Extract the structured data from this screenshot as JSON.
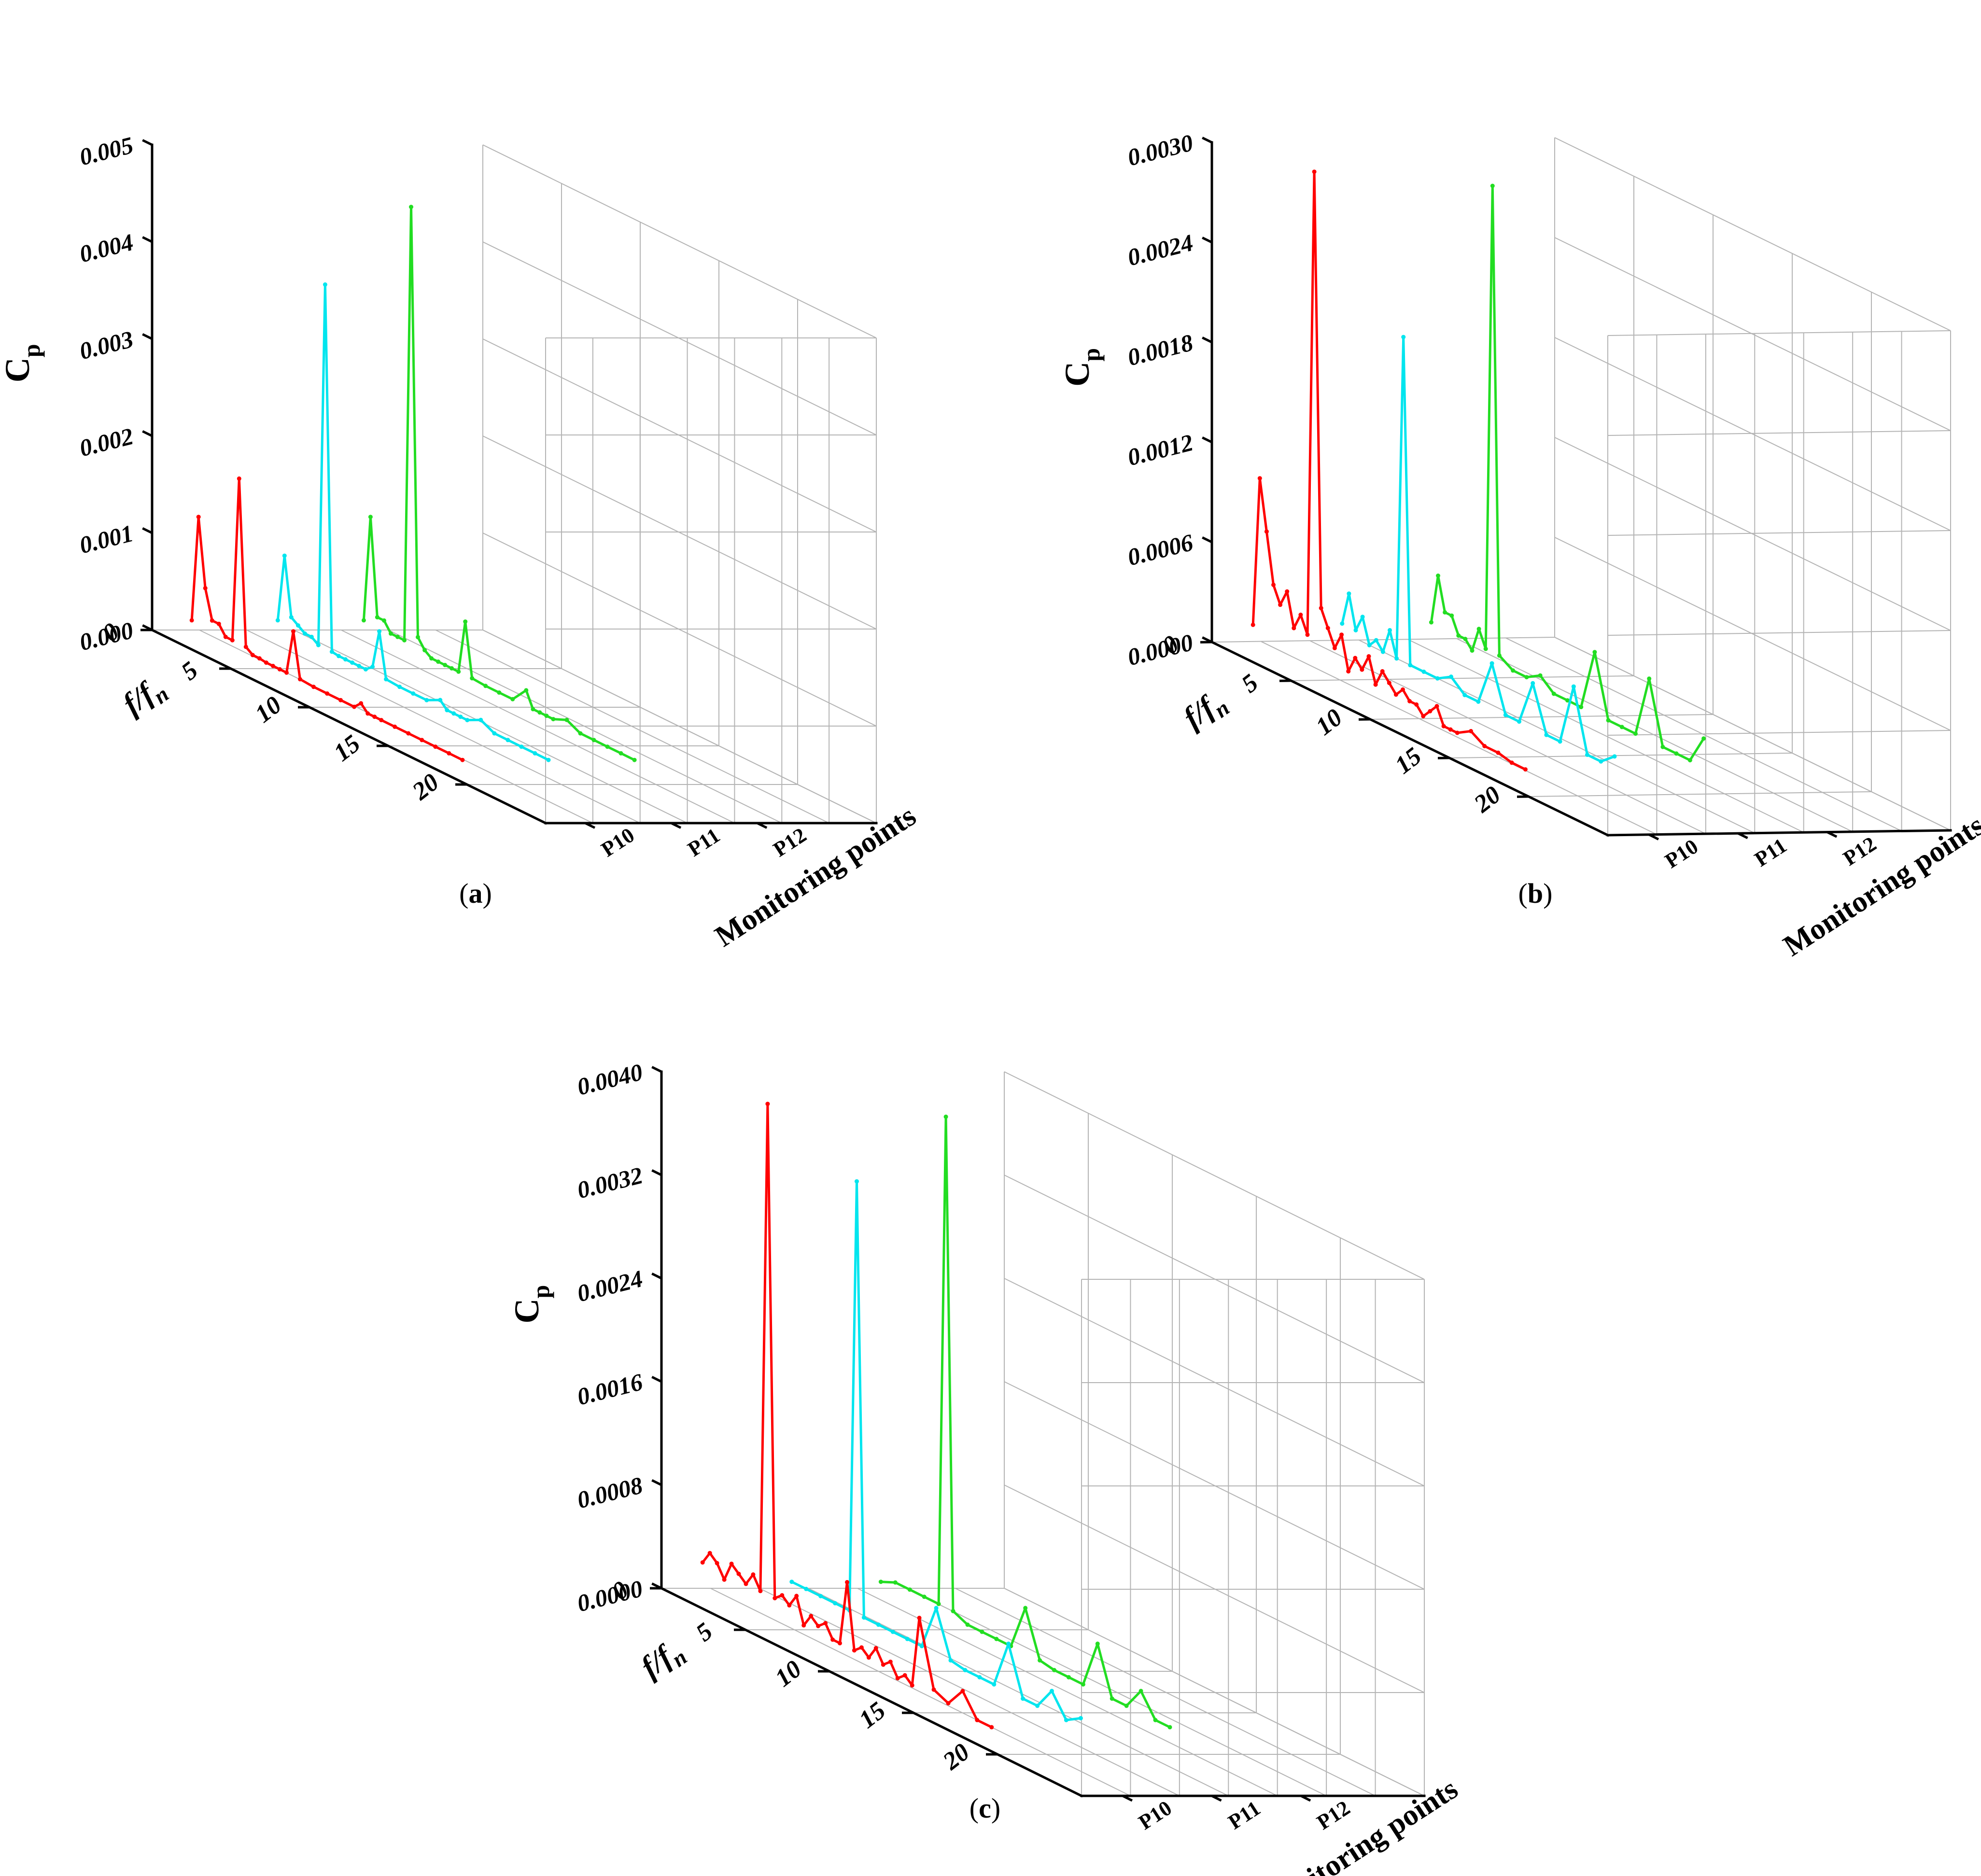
{
  "chart_data": [
    {
      "panel": "(a)",
      "caption_letter": "a",
      "type": "line",
      "view": "3d-waterfall",
      "ylabel_main": "C",
      "ylabel_sub": "p",
      "xlabel_main": "f/f",
      "xlabel_sub": "n",
      "zlabel": "Monitoring points",
      "x_ticks": [
        "0",
        "5",
        "10",
        "15",
        "20"
      ],
      "xlim": [
        0,
        25
      ],
      "y_ticks": [
        "0.000",
        "0.001",
        "0.002",
        "0.003",
        "0.004",
        "0.005"
      ],
      "ylim": [
        0,
        0.005
      ],
      "categories": [
        "P10",
        "P11",
        "P12"
      ],
      "grid": true,
      "series": [
        {
          "name": "P10",
          "color": "#ff0000",
          "x": [
            0,
            0.5,
            1,
            1.5,
            2,
            2.5,
            3,
            3.5,
            4,
            4.5,
            5,
            5.5,
            6,
            6.5,
            7,
            7.5,
            8,
            9,
            10,
            11,
            12,
            12.5,
            13,
            13.5,
            14,
            15,
            16,
            17,
            18,
            19,
            20
          ],
          "y": [
            0.0001,
            0.0012,
            0.0005,
            0.0002,
            0.0002,
            0.0001,
            0.0001,
            0.0018,
            0.0001,
            5e-05,
            5e-05,
            4e-05,
            4e-05,
            4e-05,
            4e-05,
            0.0005,
            4e-05,
            3e-05,
            3e-05,
            3e-05,
            3e-05,
            0.0001,
            3e-05,
            3e-05,
            3e-05,
            3e-05,
            3e-05,
            3e-05,
            3e-05,
            3e-05,
            3e-05
          ]
        },
        {
          "name": "P11",
          "color": "#00e5ee",
          "x": [
            0,
            0.5,
            1,
            1.5,
            2,
            2.5,
            3,
            3.5,
            4,
            4.5,
            5,
            5.5,
            6,
            6.5,
            7,
            7.5,
            8,
            9,
            10,
            11,
            12,
            12.5,
            13,
            13.5,
            14,
            15,
            16,
            17,
            18,
            19,
            20
          ],
          "y": [
            0.0001,
            0.0008,
            0.0002,
            0.00015,
            0.0001,
            0.0001,
            5e-05,
            0.0038,
            5e-05,
            4e-05,
            4e-05,
            4e-05,
            4e-05,
            4e-05,
            0.0001,
            0.0005,
            4e-05,
            3e-05,
            3e-05,
            3e-05,
            0.0001,
            3e-05,
            3e-05,
            3e-05,
            3e-05,
            0.0001,
            3e-05,
            3e-05,
            3e-05,
            3e-05,
            3e-05
          ]
        },
        {
          "name": "P12",
          "color": "#22dd22",
          "x": [
            0,
            0.5,
            1,
            1.5,
            2,
            2.5,
            3,
            3.5,
            4,
            4.5,
            5,
            5.5,
            6,
            6.5,
            7,
            7.5,
            8,
            9,
            10,
            11,
            12,
            12.5,
            13,
            13.5,
            14,
            15,
            16,
            17,
            18,
            19,
            20
          ],
          "y": [
            0.0001,
            0.0012,
            0.0002,
            0.0002,
            0.0001,
            0.0001,
            0.0001,
            0.0046,
            0.0002,
            0.0001,
            5e-05,
            5e-05,
            5e-05,
            5e-05,
            5e-05,
            0.0006,
            5e-05,
            4e-05,
            4e-05,
            4e-05,
            0.0002,
            4e-05,
            4e-05,
            4e-05,
            4e-05,
            0.0001,
            3e-05,
            3e-05,
            3e-05,
            3e-05,
            3e-05
          ]
        }
      ]
    },
    {
      "panel": "(b)",
      "caption_letter": "b",
      "type": "line",
      "view": "3d-waterfall",
      "ylabel_main": "C",
      "ylabel_sub": "p",
      "xlabel_main": "f/f",
      "xlabel_sub": "n",
      "zlabel": "Monitoring points",
      "x_ticks": [
        "0",
        "5",
        "10",
        "15",
        "20"
      ],
      "xlim": [
        0,
        25
      ],
      "y_ticks": [
        "0.0000",
        "0.0006",
        "0.0012",
        "0.0018",
        "0.0024",
        "0.0030"
      ],
      "ylim": [
        0,
        0.003
      ],
      "categories": [
        "P10",
        "P11",
        "P12"
      ],
      "grid": true,
      "series": [
        {
          "name": "P10",
          "color": "#ff0000",
          "x": [
            0,
            0.5,
            1,
            1.5,
            2,
            2.5,
            3,
            3.5,
            4,
            4.5,
            5,
            5.5,
            6,
            6.5,
            7,
            7.5,
            8,
            8.5,
            9,
            9.5,
            10,
            10.5,
            11,
            11.5,
            12,
            12.5,
            13,
            13.5,
            14,
            14.5,
            15,
            16,
            17,
            18,
            19,
            20
          ],
          "y": [
            0.0001,
            0.001,
            0.0007,
            0.0004,
            0.0003,
            0.0004,
            0.0002,
            0.0003,
            0.0002,
            0.003,
            0.0004,
            0.0003,
            0.0002,
            0.0003,
            0.0001,
            0.0002,
            0.00015,
            0.00025,
            0.0001,
            0.0002,
            0.00015,
            0.0001,
            0.00015,
            0.0001,
            0.0001,
            5e-05,
            0.0001,
            0.00015,
            5e-05,
            5e-05,
            5e-05,
            0.0001,
            5e-05,
            5e-05,
            3e-05,
            3e-05
          ]
        },
        {
          "name": "P11",
          "color": "#00e5ee",
          "x": [
            0,
            0.5,
            1,
            1.5,
            2,
            2.5,
            3,
            3.5,
            4,
            4.5,
            5,
            6,
            7,
            8,
            9,
            10,
            11,
            12,
            13,
            14,
            15,
            16,
            17,
            18,
            19,
            20
          ],
          "y": [
            0.0001,
            0.0003,
            0.0001,
            0.0002,
            5e-05,
            0.0001,
            5e-05,
            0.0002,
            5e-05,
            0.002,
            5e-05,
            5e-05,
            5e-05,
            0.0001,
            3e-05,
            3e-05,
            0.0003,
            3e-05,
            3e-05,
            0.0003,
            3e-05,
            3e-05,
            0.0004,
            3e-05,
            3e-05,
            0.0001
          ]
        },
        {
          "name": "P12",
          "color": "#22dd22",
          "x": [
            0,
            0.5,
            1,
            1.5,
            2,
            2.5,
            3,
            3.5,
            4,
            4.5,
            5,
            6,
            7,
            8,
            9,
            10,
            11,
            12,
            13,
            14,
            15,
            16,
            17,
            18,
            19,
            20
          ],
          "y": [
            0.0001,
            0.0004,
            0.0002,
            0.0002,
            0.0001,
            0.0001,
            5e-05,
            0.0002,
            0.0001,
            0.0029,
            0.0001,
            5e-05,
            5e-05,
            0.0001,
            3e-05,
            3e-05,
            3e-05,
            0.0004,
            3e-05,
            3e-05,
            3e-05,
            0.0004,
            3e-05,
            3e-05,
            3e-05,
            0.0002
          ]
        }
      ]
    },
    {
      "panel": "(c)",
      "caption_letter": "c",
      "type": "line",
      "view": "3d-waterfall",
      "ylabel_main": "C",
      "ylabel_sub": "p",
      "xlabel_main": "f/f",
      "xlabel_sub": "n",
      "zlabel": "Monitoring points",
      "x_ticks": [
        "0",
        "5",
        "10",
        "15",
        "20"
      ],
      "xlim": [
        0,
        25
      ],
      "y_ticks": [
        "0.0000",
        "0.0008",
        "0.0016",
        "0.0024",
        "0.0032",
        "0.0040"
      ],
      "ylim": [
        0,
        0.004
      ],
      "categories": [
        "P10",
        "P11",
        "P12"
      ],
      "grid": true,
      "series": [
        {
          "name": "P10",
          "color": "#ff0000",
          "x": [
            0,
            0.5,
            1,
            1.5,
            2,
            2.5,
            3,
            3.5,
            4,
            4.5,
            5,
            5.5,
            6,
            6.5,
            7,
            7.5,
            8,
            8.5,
            9,
            9.5,
            10,
            10.5,
            11,
            11.5,
            12,
            12.5,
            13,
            13.5,
            14,
            14.5,
            15,
            16,
            17,
            18,
            19,
            20
          ],
          "y": [
            0.0002,
            0.0003,
            0.00025,
            0.00015,
            0.0003,
            0.00025,
            0.0002,
            0.0003,
            0.0002,
            0.004,
            0.0002,
            0.00025,
            0.0002,
            0.0003,
            0.0001,
            0.0002,
            0.00015,
            0.0002,
            0.0001,
            0.0001,
            0.0006,
            0.0001,
            0.00015,
            0.0001,
            0.0002,
            0.0001,
            0.00015,
            5e-05,
            0.0001,
            5e-05,
            0.0006,
            0.0001,
            5e-05,
            0.0002,
            3e-05,
            3e-05
          ]
        },
        {
          "name": "P11",
          "color": "#00e5ee",
          "x": [
            0,
            1,
            2,
            3,
            4,
            4.5,
            5,
            6,
            7,
            8,
            9,
            10,
            11,
            12,
            13,
            14,
            15,
            16,
            17,
            18,
            19,
            20
          ],
          "y": [
            5e-05,
            5e-05,
            5e-05,
            5e-05,
            5e-05,
            0.0034,
            5e-05,
            5e-05,
            5e-05,
            5e-05,
            5e-05,
            0.0004,
            5e-05,
            3e-05,
            3e-05,
            3e-05,
            0.0004,
            3e-05,
            3e-05,
            0.0002,
            3e-05,
            0.0001
          ]
        },
        {
          "name": "P12",
          "color": "#22dd22",
          "x": [
            0,
            1,
            2,
            3,
            4,
            4.5,
            5,
            6,
            7,
            8,
            9,
            10,
            11,
            12,
            13,
            14,
            15,
            16,
            17,
            18,
            19,
            20
          ],
          "y": [
            5e-05,
            0.0001,
            0.0001,
            0.0001,
            0.0001,
            0.0039,
            0.0001,
            5e-05,
            5e-05,
            5e-05,
            5e-05,
            0.0004,
            5e-05,
            3e-05,
            3e-05,
            3e-05,
            0.0004,
            3e-05,
            3e-05,
            0.0002,
            3e-05,
            3e-05
          ]
        }
      ]
    }
  ]
}
